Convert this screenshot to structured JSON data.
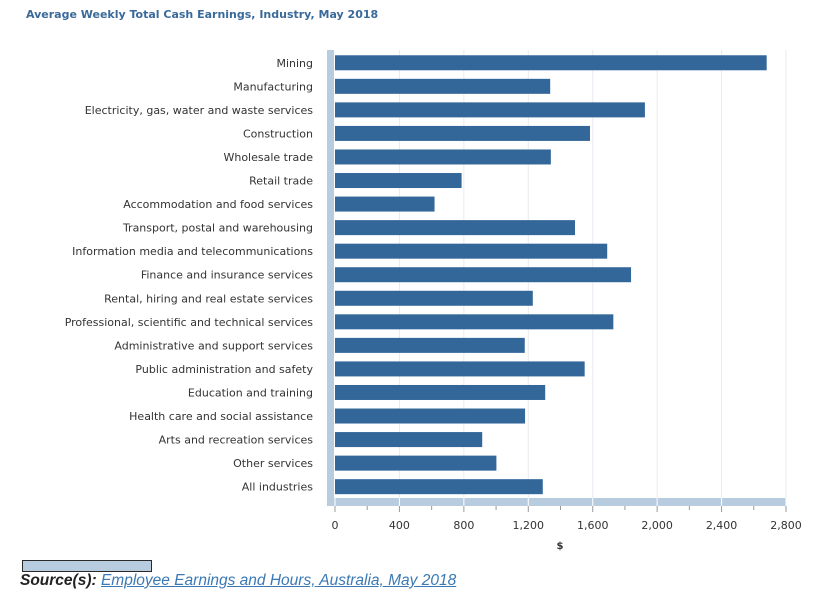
{
  "chart_data": {
    "type": "bar",
    "orientation": "horizontal",
    "title": "Average Weekly Total Cash Earnings, Industry, May 2018",
    "xlabel": "$",
    "ylabel": "",
    "xlim": [
      0,
      2800
    ],
    "x_ticks": [
      0,
      400,
      800,
      1200,
      1600,
      2000,
      2400,
      2800
    ],
    "x_tick_labels": [
      "0",
      "400",
      "800",
      "1,200",
      "1,600",
      "2,000",
      "2,400",
      "2,800"
    ],
    "grid": "vertical",
    "bar_color": "#336699",
    "categories": [
      "Mining",
      "Manufacturing",
      "Electricity, gas, water and waste services",
      "Construction",
      "Wholesale trade",
      "Retail trade",
      "Accommodation and food services",
      "Transport, postal and warehousing",
      "Information media and telecommunications",
      "Finance and insurance services",
      "Rental, hiring and real estate services",
      "Professional, scientific and technical services",
      "Administrative and support services",
      "Public administration and safety",
      "Education and training",
      "Health care and social assistance",
      "Arts and recreation services",
      "Other services",
      "All industries"
    ],
    "values": [
      2680,
      1336,
      1924,
      1583,
      1340,
      786,
      618,
      1490,
      1690,
      1838,
      1228,
      1728,
      1178,
      1550,
      1305,
      1180,
      914,
      1002,
      1290
    ]
  },
  "source": {
    "label": "Source(s):",
    "link_text": "Employee Earnings and Hours, Australia, May 2018"
  }
}
